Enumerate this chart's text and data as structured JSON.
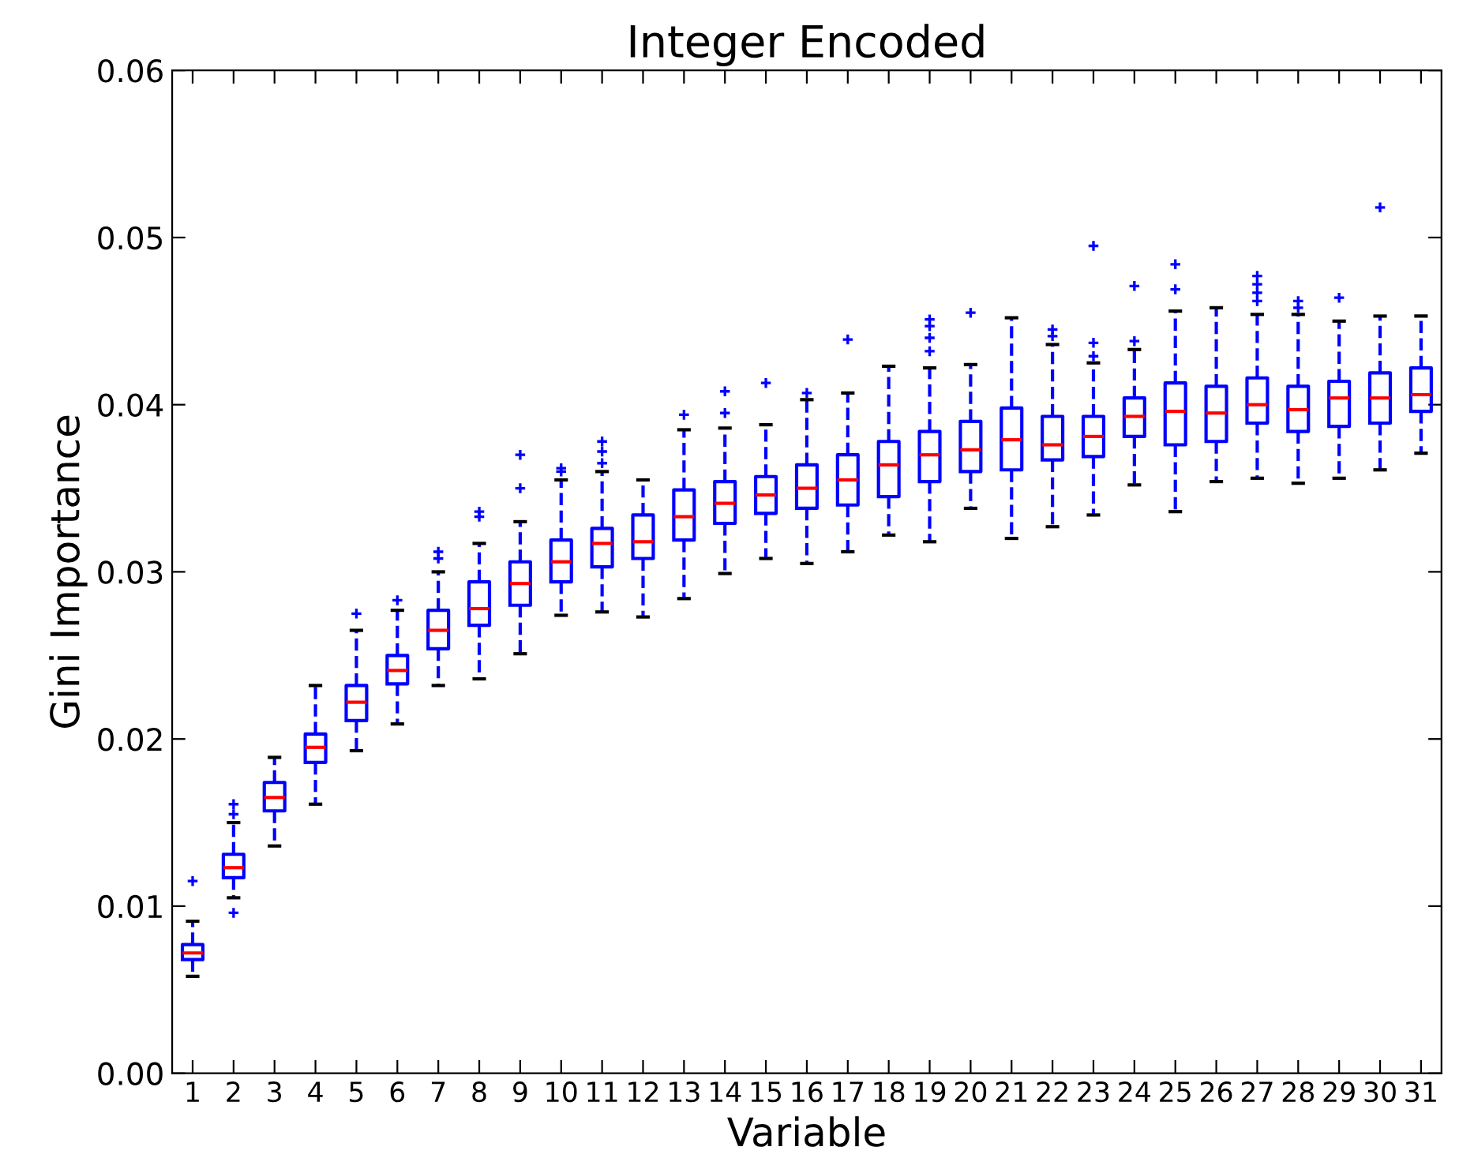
{
  "chart_data": {
    "type": "box",
    "title": "Integer Encoded",
    "xlabel": "Variable",
    "ylabel": "Gini Importance",
    "categories": [
      "1",
      "2",
      "3",
      "4",
      "5",
      "6",
      "7",
      "8",
      "9",
      "10",
      "11",
      "12",
      "13",
      "14",
      "15",
      "16",
      "17",
      "18",
      "19",
      "20",
      "21",
      "22",
      "23",
      "24",
      "25",
      "26",
      "27",
      "28",
      "29",
      "30",
      "31"
    ],
    "ylim": [
      0,
      0.06
    ],
    "yticks": [
      {
        "value": 0,
        "label": "0.00"
      },
      {
        "value": 0.01,
        "label": "0.01"
      },
      {
        "value": 0.02,
        "label": "0.02"
      },
      {
        "value": 0.03,
        "label": "0.03"
      },
      {
        "value": 0.04,
        "label": "0.04"
      },
      {
        "value": 0.05,
        "label": "0.05"
      },
      {
        "value": 0.06,
        "label": "0.06"
      }
    ],
    "grid": false,
    "series": [
      {
        "color": "#0000ff",
        "boxes": [
          {
            "low": 0.0058,
            "q1": 0.0068,
            "median": 0.0072,
            "q3": 0.0077,
            "high": 0.0091,
            "outliers": [
              0.0115
            ]
          },
          {
            "low": 0.0105,
            "q1": 0.0117,
            "median": 0.0123,
            "q3": 0.0131,
            "high": 0.015,
            "outliers": [
              0.0096,
              0.0155,
              0.0161
            ]
          },
          {
            "low": 0.0136,
            "q1": 0.0157,
            "median": 0.0165,
            "q3": 0.0174,
            "high": 0.0189
          },
          {
            "low": 0.0161,
            "q1": 0.0186,
            "median": 0.0195,
            "q3": 0.0203,
            "high": 0.0232
          },
          {
            "low": 0.0193,
            "q1": 0.0211,
            "median": 0.0222,
            "q3": 0.0232,
            "high": 0.0265,
            "outliers": [
              0.0275
            ]
          },
          {
            "low": 0.0209,
            "q1": 0.0233,
            "median": 0.0241,
            "q3": 0.025,
            "high": 0.0277,
            "outliers": [
              0.0283
            ]
          },
          {
            "low": 0.0232,
            "q1": 0.0254,
            "median": 0.0265,
            "q3": 0.0277,
            "high": 0.03,
            "outliers": [
              0.0308,
              0.0312
            ]
          },
          {
            "low": 0.0236,
            "q1": 0.0268,
            "median": 0.0278,
            "q3": 0.0294,
            "high": 0.0317,
            "outliers": [
              0.0333,
              0.0336
            ]
          },
          {
            "low": 0.0251,
            "q1": 0.028,
            "median": 0.0293,
            "q3": 0.0306,
            "high": 0.033,
            "outliers": [
              0.035,
              0.037
            ]
          },
          {
            "low": 0.0274,
            "q1": 0.0294,
            "median": 0.0306,
            "q3": 0.0319,
            "high": 0.0355,
            "outliers": [
              0.036,
              0.0362
            ]
          },
          {
            "low": 0.0276,
            "q1": 0.0303,
            "median": 0.0317,
            "q3": 0.0326,
            "high": 0.036,
            "outliers": [
              0.0365,
              0.0372,
              0.0378
            ]
          },
          {
            "low": 0.0273,
            "q1": 0.0308,
            "median": 0.0318,
            "q3": 0.0334,
            "high": 0.0355
          },
          {
            "low": 0.0284,
            "q1": 0.0319,
            "median": 0.0333,
            "q3": 0.0349,
            "high": 0.0385,
            "outliers": [
              0.0394
            ]
          },
          {
            "low": 0.0299,
            "q1": 0.0329,
            "median": 0.0341,
            "q3": 0.0354,
            "high": 0.0386,
            "outliers": [
              0.0395,
              0.0408
            ]
          },
          {
            "low": 0.0308,
            "q1": 0.0335,
            "median": 0.0346,
            "q3": 0.0357,
            "high": 0.0388,
            "outliers": [
              0.0413
            ]
          },
          {
            "low": 0.0305,
            "q1": 0.0338,
            "median": 0.035,
            "q3": 0.0364,
            "high": 0.0403,
            "outliers": [
              0.0407
            ]
          },
          {
            "low": 0.0312,
            "q1": 0.034,
            "median": 0.0355,
            "q3": 0.037,
            "high": 0.0407,
            "outliers": [
              0.0439
            ]
          },
          {
            "low": 0.0322,
            "q1": 0.0345,
            "median": 0.0364,
            "q3": 0.0378,
            "high": 0.0423
          },
          {
            "low": 0.0318,
            "q1": 0.0354,
            "median": 0.037,
            "q3": 0.0384,
            "high": 0.0422,
            "outliers": [
              0.0432,
              0.044,
              0.0447,
              0.0451
            ]
          },
          {
            "low": 0.0338,
            "q1": 0.036,
            "median": 0.0373,
            "q3": 0.039,
            "high": 0.0424,
            "outliers": [
              0.0455
            ]
          },
          {
            "low": 0.032,
            "q1": 0.0361,
            "median": 0.0379,
            "q3": 0.0398,
            "high": 0.0452
          },
          {
            "low": 0.0327,
            "q1": 0.0367,
            "median": 0.0376,
            "q3": 0.0393,
            "high": 0.0436,
            "outliers": [
              0.0441,
              0.0445
            ]
          },
          {
            "low": 0.0334,
            "q1": 0.0369,
            "median": 0.0381,
            "q3": 0.0393,
            "high": 0.0425,
            "outliers": [
              0.0429,
              0.0437,
              0.0495
            ]
          },
          {
            "low": 0.0352,
            "q1": 0.0381,
            "median": 0.0393,
            "q3": 0.0404,
            "high": 0.0433,
            "outliers": [
              0.0438,
              0.0471
            ]
          },
          {
            "low": 0.0336,
            "q1": 0.0376,
            "median": 0.0396,
            "q3": 0.0413,
            "high": 0.0456,
            "outliers": [
              0.0469,
              0.0484
            ]
          },
          {
            "low": 0.0354,
            "q1": 0.0378,
            "median": 0.0395,
            "q3": 0.0411,
            "high": 0.0458
          },
          {
            "low": 0.0356,
            "q1": 0.0389,
            "median": 0.04,
            "q3": 0.0416,
            "high": 0.0454,
            "outliers": [
              0.0462,
              0.0467,
              0.0472,
              0.0477
            ]
          },
          {
            "low": 0.0353,
            "q1": 0.0384,
            "median": 0.0397,
            "q3": 0.0411,
            "high": 0.0454,
            "outliers": [
              0.0458,
              0.0462
            ]
          },
          {
            "low": 0.0356,
            "q1": 0.0387,
            "median": 0.0404,
            "q3": 0.0414,
            "high": 0.045,
            "outliers": [
              0.0464
            ]
          },
          {
            "low": 0.0361,
            "q1": 0.0389,
            "median": 0.0404,
            "q3": 0.0419,
            "high": 0.0453,
            "outliers": [
              0.0518
            ]
          },
          {
            "low": 0.0371,
            "q1": 0.0396,
            "median": 0.0406,
            "q3": 0.0422,
            "high": 0.0453
          }
        ]
      }
    ]
  }
}
